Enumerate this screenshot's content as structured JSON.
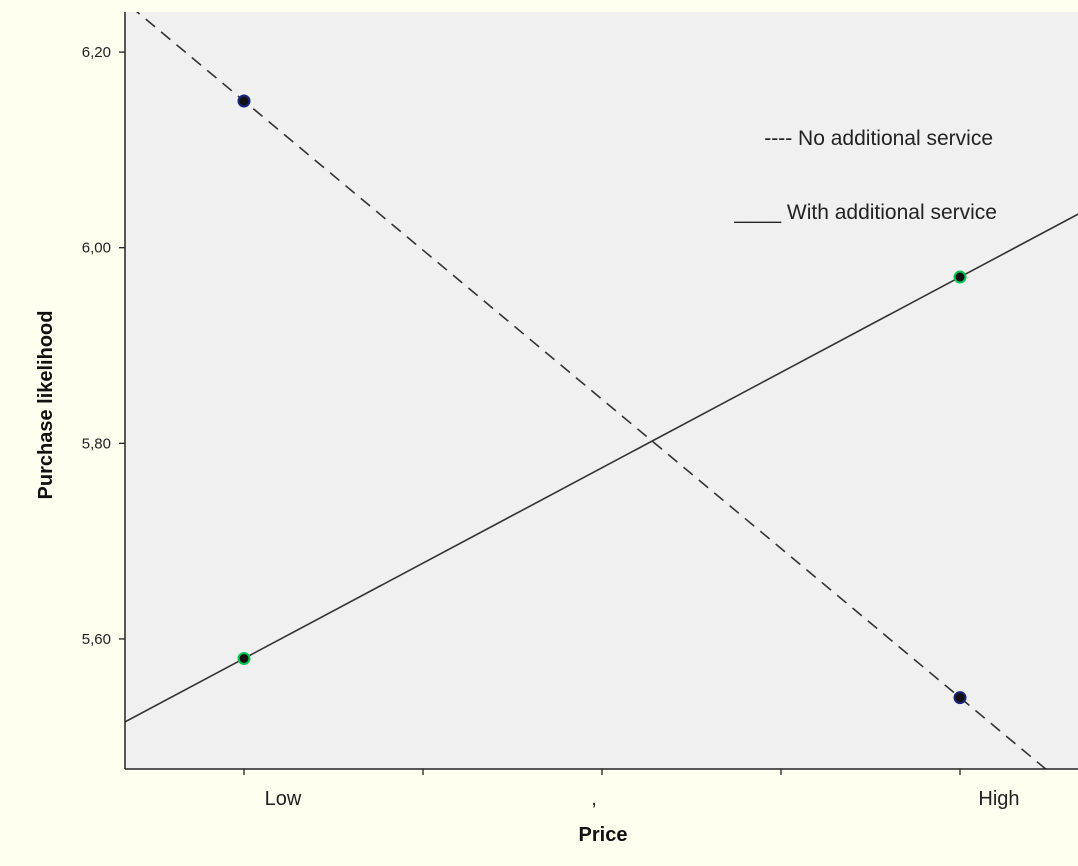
{
  "chart_data": {
    "type": "line",
    "xlabel": "Price",
    "ylabel": "Purchase likelihood",
    "categories": [
      "Low",
      "High"
    ],
    "x_ticks": [
      "Low",
      ",",
      "High"
    ],
    "y_ticks": [
      "5,60",
      "5,80",
      "6,00",
      "6,20"
    ],
    "y_tick_values": [
      5.6,
      5.8,
      6.0,
      6.2
    ],
    "ylim": [
      5.467,
      6.241
    ],
    "grid": false,
    "legend_position": "top-right",
    "series": [
      {
        "legend_text": "---- No additional service",
        "line_style": "dashed",
        "marker_color": "#1a237e",
        "values": [
          6.15,
          5.54
        ]
      },
      {
        "legend_text": "____ With additional service",
        "line_style": "solid",
        "marker_color": "#00c853",
        "values": [
          5.58,
          5.97
        ]
      }
    ]
  }
}
